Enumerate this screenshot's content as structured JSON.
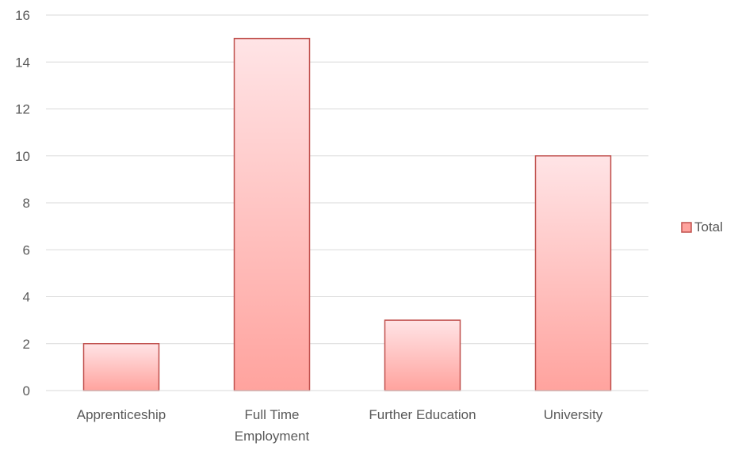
{
  "chart_data": {
    "type": "bar",
    "categories": [
      "Apprenticeship",
      "Full Time Employment",
      "Further Education",
      "University"
    ],
    "category_lines": [
      [
        "Apprenticeship"
      ],
      [
        "Full Time",
        "Employment"
      ],
      [
        "Further Education"
      ],
      [
        "University"
      ]
    ],
    "series": [
      {
        "name": "Total",
        "values": [
          2,
          15,
          3,
          10
        ]
      }
    ],
    "ylim": [
      0,
      16
    ],
    "yticks": [
      "0",
      "2",
      "4",
      "6",
      "8",
      "10",
      "12",
      "14",
      "16"
    ],
    "grid": true,
    "legend_position": "right",
    "colors": {
      "bar_fill_top": "#ffe4e6",
      "bar_fill_bottom": "#ffa39e",
      "bar_stroke": "#c0504d",
      "grid": "#d9d9d9",
      "text": "#595959"
    }
  }
}
